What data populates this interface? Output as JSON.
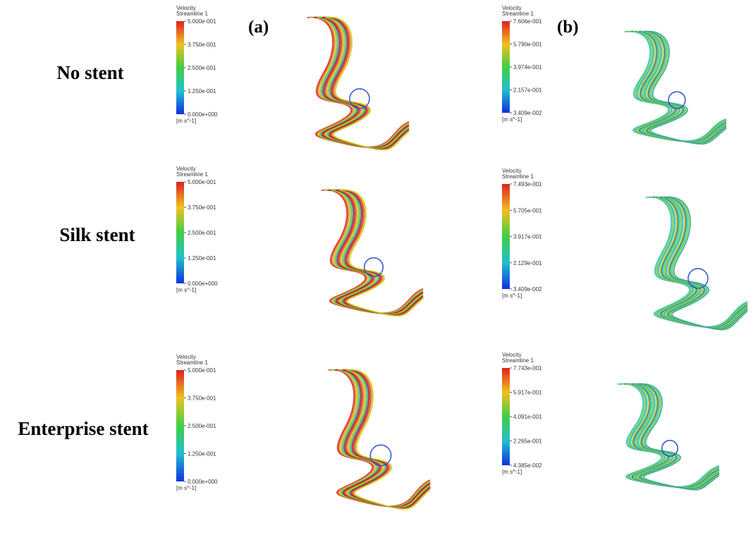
{
  "panels": [
    {
      "label": "(a)"
    },
    {
      "label": "(b)"
    }
  ],
  "rows": [
    {
      "label": "No stent",
      "legends": [
        {
          "title": "Velocity",
          "subtitle": "Streamline 1",
          "ticks": [
            "5.000e-001",
            "3.750e-001",
            "2.500e-001",
            "1.250e-001",
            "0.000e+000"
          ],
          "unit": "[m s^-1]"
        },
        {
          "title": "Velocity",
          "subtitle": "Streamline 1",
          "ticks": [
            "7.606e-001",
            "5.790e-001",
            "3.974e-001",
            "2.157e-001",
            "3.409e-002"
          ],
          "unit": "[m s^-1]"
        }
      ]
    },
    {
      "label": "Silk stent",
      "legends": [
        {
          "title": "Velocity",
          "subtitle": "Streamline 1",
          "ticks": [
            "5.000e-001",
            "3.750e-001",
            "2.500e-001",
            "1.250e-001",
            "0.000e+000"
          ],
          "unit": "[m s^-1]"
        },
        {
          "title": "Velocity",
          "subtitle": "Streamline 1",
          "ticks": [
            "7.493e-001",
            "5.705e-001",
            "3.917e-001",
            "2.129e-001",
            "3.409e-002"
          ],
          "unit": "[m s^-1]"
        }
      ]
    },
    {
      "label": "Enterprise stent",
      "legends": [
        {
          "title": "Velocity",
          "subtitle": "Streamline 1",
          "ticks": [
            "5.000e-001",
            "3.750e-001",
            "2.500e-001",
            "1.250e-001",
            "0.000e+000"
          ],
          "unit": "[m s^-1]"
        },
        {
          "title": "Velocity",
          "subtitle": "Streamline 1",
          "ticks": [
            "7.743e-001",
            "5.917e-001",
            "4.091e-001",
            "2.265e-001",
            "4.385e-002"
          ],
          "unit": "[m s^-1]"
        }
      ]
    }
  ]
}
